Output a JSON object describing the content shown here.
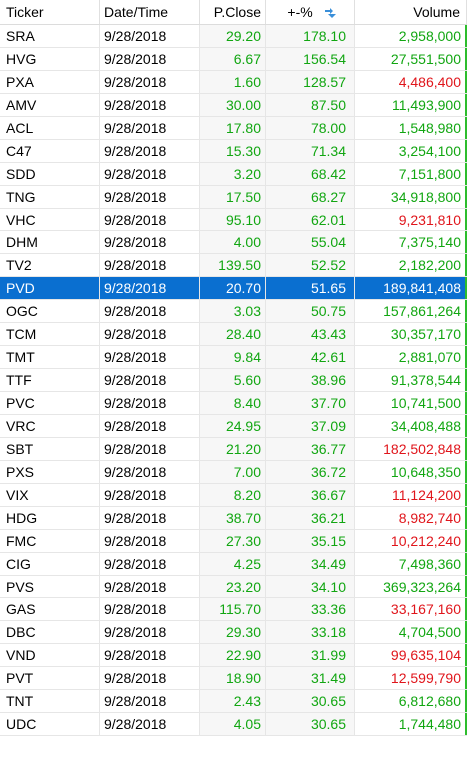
{
  "colors": {
    "up": "#11a611",
    "down": "#e0151b",
    "selection": "#0a6fd0",
    "sort_icon": "#3a8fd9"
  },
  "header": {
    "ticker": "Ticker",
    "date": "Date/Time",
    "close": "P.Close",
    "pct": "+-%",
    "volume": "Volume",
    "sort_icon": "sort-descending-icon"
  },
  "rows": [
    {
      "ticker": "SRA",
      "date": "9/28/2018",
      "close": "29.20",
      "pct": "178.10",
      "volume": "2,958,000",
      "vol_dir": "up"
    },
    {
      "ticker": "HVG",
      "date": "9/28/2018",
      "close": "6.67",
      "pct": "156.54",
      "volume": "27,551,500",
      "vol_dir": "up"
    },
    {
      "ticker": "PXA",
      "date": "9/28/2018",
      "close": "1.60",
      "pct": "128.57",
      "volume": "4,486,400",
      "vol_dir": "down"
    },
    {
      "ticker": "AMV",
      "date": "9/28/2018",
      "close": "30.00",
      "pct": "87.50",
      "volume": "11,493,900",
      "vol_dir": "up"
    },
    {
      "ticker": "ACL",
      "date": "9/28/2018",
      "close": "17.80",
      "pct": "78.00",
      "volume": "1,548,980",
      "vol_dir": "up"
    },
    {
      "ticker": "C47",
      "date": "9/28/2018",
      "close": "15.30",
      "pct": "71.34",
      "volume": "3,254,100",
      "vol_dir": "up"
    },
    {
      "ticker": "SDD",
      "date": "9/28/2018",
      "close": "3.20",
      "pct": "68.42",
      "volume": "7,151,800",
      "vol_dir": "up"
    },
    {
      "ticker": "TNG",
      "date": "9/28/2018",
      "close": "17.50",
      "pct": "68.27",
      "volume": "34,918,800",
      "vol_dir": "up"
    },
    {
      "ticker": "VHC",
      "date": "9/28/2018",
      "close": "95.10",
      "pct": "62.01",
      "volume": "9,231,810",
      "vol_dir": "down"
    },
    {
      "ticker": "DHM",
      "date": "9/28/2018",
      "close": "4.00",
      "pct": "55.04",
      "volume": "7,375,140",
      "vol_dir": "up"
    },
    {
      "ticker": "TV2",
      "date": "9/28/2018",
      "close": "139.50",
      "pct": "52.52",
      "volume": "2,182,200",
      "vol_dir": "up"
    },
    {
      "ticker": "PVD",
      "date": "9/28/2018",
      "close": "20.70",
      "pct": "51.65",
      "volume": "189,841,408",
      "vol_dir": "up",
      "selected": true
    },
    {
      "ticker": "OGC",
      "date": "9/28/2018",
      "close": "3.03",
      "pct": "50.75",
      "volume": "157,861,264",
      "vol_dir": "up"
    },
    {
      "ticker": "TCM",
      "date": "9/28/2018",
      "close": "28.40",
      "pct": "43.43",
      "volume": "30,357,170",
      "vol_dir": "up"
    },
    {
      "ticker": "TMT",
      "date": "9/28/2018",
      "close": "9.84",
      "pct": "42.61",
      "volume": "2,881,070",
      "vol_dir": "up"
    },
    {
      "ticker": "TTF",
      "date": "9/28/2018",
      "close": "5.60",
      "pct": "38.96",
      "volume": "91,378,544",
      "vol_dir": "up"
    },
    {
      "ticker": "PVC",
      "date": "9/28/2018",
      "close": "8.40",
      "pct": "37.70",
      "volume": "10,741,500",
      "vol_dir": "up"
    },
    {
      "ticker": "VRC",
      "date": "9/28/2018",
      "close": "24.95",
      "pct": "37.09",
      "volume": "34,408,488",
      "vol_dir": "up"
    },
    {
      "ticker": "SBT",
      "date": "9/28/2018",
      "close": "21.20",
      "pct": "36.77",
      "volume": "182,502,848",
      "vol_dir": "down"
    },
    {
      "ticker": "PXS",
      "date": "9/28/2018",
      "close": "7.00",
      "pct": "36.72",
      "volume": "10,648,350",
      "vol_dir": "up"
    },
    {
      "ticker": "VIX",
      "date": "9/28/2018",
      "close": "8.20",
      "pct": "36.67",
      "volume": "11,124,200",
      "vol_dir": "down"
    },
    {
      "ticker": "HDG",
      "date": "9/28/2018",
      "close": "38.70",
      "pct": "36.21",
      "volume": "8,982,740",
      "vol_dir": "down"
    },
    {
      "ticker": "FMC",
      "date": "9/28/2018",
      "close": "27.30",
      "pct": "35.15",
      "volume": "10,212,240",
      "vol_dir": "down"
    },
    {
      "ticker": "CIG",
      "date": "9/28/2018",
      "close": "4.25",
      "pct": "34.49",
      "volume": "7,498,360",
      "vol_dir": "up"
    },
    {
      "ticker": "PVS",
      "date": "9/28/2018",
      "close": "23.20",
      "pct": "34.10",
      "volume": "369,323,264",
      "vol_dir": "up"
    },
    {
      "ticker": "GAS",
      "date": "9/28/2018",
      "close": "115.70",
      "pct": "33.36",
      "volume": "33,167,160",
      "vol_dir": "down"
    },
    {
      "ticker": "DBC",
      "date": "9/28/2018",
      "close": "29.30",
      "pct": "33.18",
      "volume": "4,704,500",
      "vol_dir": "up"
    },
    {
      "ticker": "VND",
      "date": "9/28/2018",
      "close": "22.90",
      "pct": "31.99",
      "volume": "99,635,104",
      "vol_dir": "down"
    },
    {
      "ticker": "PVT",
      "date": "9/28/2018",
      "close": "18.90",
      "pct": "31.49",
      "volume": "12,599,790",
      "vol_dir": "down"
    },
    {
      "ticker": "TNT",
      "date": "9/28/2018",
      "close": "2.43",
      "pct": "30.65",
      "volume": "6,812,680",
      "vol_dir": "up"
    },
    {
      "ticker": "UDC",
      "date": "9/28/2018",
      "close": "4.05",
      "pct": "30.65",
      "volume": "1,744,480",
      "vol_dir": "up"
    }
  ]
}
